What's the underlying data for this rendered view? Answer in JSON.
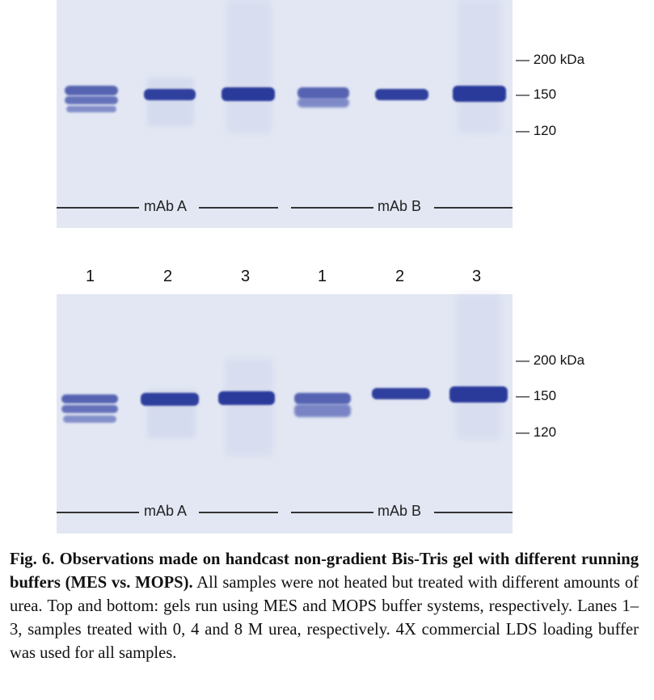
{
  "lane_numbers": [
    "1",
    "2",
    "3",
    "1",
    "2",
    "3"
  ],
  "top_gel": {
    "markers": [
      "— 200 kDa",
      "— 150",
      "— 120"
    ],
    "group_labels": [
      "mAb A",
      "mAb B"
    ]
  },
  "bottom_gel": {
    "markers": [
      "— 200 kDa",
      "— 150",
      "— 120"
    ],
    "group_labels": [
      "mAb A",
      "mAb B"
    ]
  },
  "caption": {
    "figure_label": "Fig. 6.",
    "title": "Observations made on handcast non-gradient Bis-Tris gel with different running buffers (MES vs. MOPS).",
    "body": "All samples were not heated but treated with different amounts of urea. Top and bottom: gels run using MES and MOPS buffer systems, respectively. Lanes 1–3, samples treated with 0, 4 and 8 M urea, respectively. 4X commercial LDS loading buffer was used for all samples."
  },
  "colors": {
    "gel_background": "#e2e7f3",
    "band": "#2f3f9e"
  }
}
